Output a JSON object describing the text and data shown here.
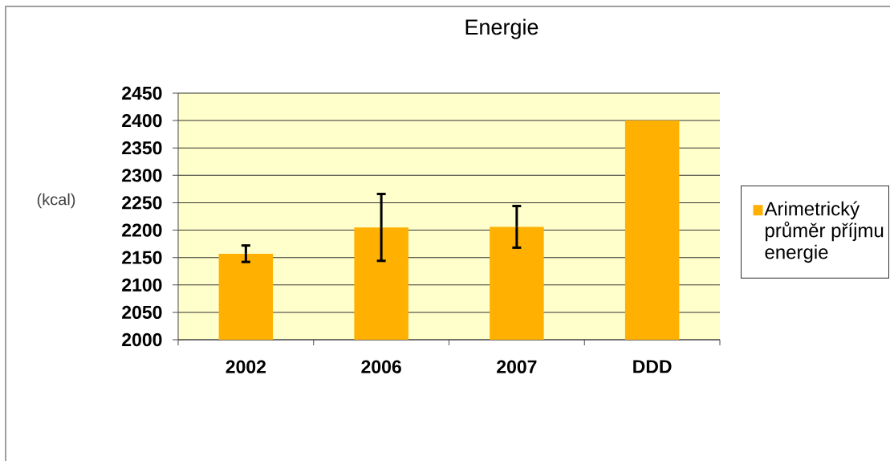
{
  "chart_data": {
    "type": "bar",
    "title": "Energie",
    "ylabel": "(kcal)",
    "categories": [
      "2002",
      "2006",
      "2007",
      "DDD"
    ],
    "series": [
      {
        "name": "Arimetrický průměr příjmu energie",
        "color": "#ffb000",
        "values": [
          2157,
          2205,
          2206,
          2400
        ],
        "errors": [
          15,
          61,
          38,
          null
        ]
      }
    ],
    "ylim": [
      2000,
      2450
    ],
    "yticks": [
      2000,
      2050,
      2100,
      2150,
      2200,
      2250,
      2300,
      2350,
      2400,
      2450
    ],
    "grid": "y",
    "legend": "right"
  }
}
